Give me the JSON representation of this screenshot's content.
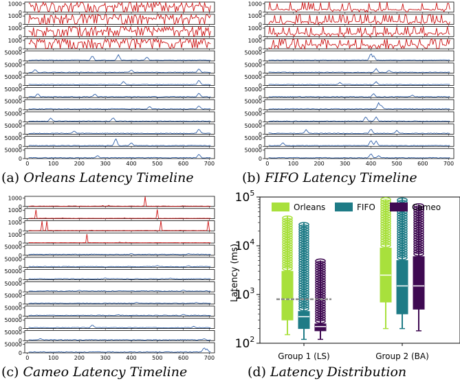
{
  "colors": {
    "ls_series": "#cc1111",
    "ba_series": "#2f5fa8",
    "orleans": "#a8e03c",
    "fifo": "#1e7b86",
    "cameo": "#3f0a52",
    "median_line": "#888888"
  },
  "captions": {
    "a": {
      "label": "(a) ",
      "text": "Orleans Latency Timeline"
    },
    "b": {
      "label": "(b) ",
      "text": "FIFO Latency Timeline"
    },
    "c": {
      "label": "(c) ",
      "text": "Cameo Latency Timeline"
    },
    "d": {
      "label": "(d) ",
      "text": "Latency Distribution"
    }
  },
  "chart_data": [
    {
      "type": "line",
      "panel": "a",
      "x_ticks": [
        0,
        100,
        200,
        300,
        400,
        500,
        600,
        700
      ],
      "xlim": [
        -10,
        720
      ],
      "ls_rows": [
        {
          "ylim": [
            0,
            1200
          ],
          "yticks": [
            0,
            1000
          ],
          "seed": 11,
          "base": 700,
          "amp": 500,
          "spike_prob": 0.35
        },
        {
          "ylim": [
            0,
            1200
          ],
          "yticks": [
            0,
            1000
          ],
          "seed": 12,
          "base": 700,
          "amp": 500,
          "spike_prob": 0.35
        },
        {
          "ylim": [
            0,
            1200
          ],
          "yticks": [
            0,
            1000
          ],
          "seed": 13,
          "base": 700,
          "amp": 500,
          "spike_prob": 0.35
        },
        {
          "ylim": [
            0,
            1200
          ],
          "yticks": [
            0,
            1000
          ],
          "seed": 14,
          "base": 700,
          "amp": 500,
          "spike_prob": 0.35
        }
      ],
      "ba_rows": [
        {
          "ylim": [
            0,
            60000
          ],
          "yticks": [
            0,
            50000
          ],
          "seed": 21,
          "spikes": [
            [
              250,
              30000
            ],
            [
              350,
              35000
            ],
            [
              460,
              22000
            ]
          ]
        },
        {
          "ylim": [
            0,
            60000
          ],
          "yticks": [
            0,
            50000
          ],
          "seed": 22,
          "spikes": [
            [
              30,
              20000
            ],
            [
              400,
              18000
            ],
            [
              660,
              25000
            ]
          ]
        },
        {
          "ylim": [
            0,
            60000
          ],
          "yticks": [
            0,
            50000
          ],
          "seed": 23,
          "spikes": [
            [
              370,
              22000
            ],
            [
              660,
              30000
            ]
          ]
        },
        {
          "ylim": [
            0,
            60000
          ],
          "yticks": [
            0,
            50000
          ],
          "seed": 24,
          "spikes": [
            [
              40,
              22000
            ],
            [
              260,
              20000
            ],
            [
              660,
              25000
            ]
          ]
        },
        {
          "ylim": [
            0,
            60000
          ],
          "yticks": [
            0,
            50000
          ],
          "seed": 25,
          "spikes": [
            [
              470,
              18000
            ],
            [
              660,
              22000
            ]
          ]
        },
        {
          "ylim": [
            0,
            60000
          ],
          "yticks": [
            0,
            50000
          ],
          "seed": 26,
          "spikes": [
            [
              90,
              22000
            ],
            [
              330,
              24000
            ]
          ]
        },
        {
          "ylim": [
            0,
            60000
          ],
          "yticks": [
            0,
            50000
          ],
          "seed": 27,
          "spikes": [
            [
              180,
              18000
            ],
            [
              660,
              30000
            ]
          ]
        },
        {
          "ylim": [
            0,
            60000
          ],
          "yticks": [
            0,
            50000
          ],
          "seed": 28,
          "spikes": [
            [
              340,
              45000
            ],
            [
              400,
              20000
            ]
          ]
        },
        {
          "ylim": [
            0,
            60000
          ],
          "yticks": [
            0,
            50000
          ],
          "seed": 29,
          "spikes": [
            [
              270,
              16000
            ],
            [
              660,
              24000
            ]
          ]
        }
      ]
    },
    {
      "type": "line",
      "panel": "b",
      "x_ticks": [
        0,
        100,
        200,
        300,
        400,
        500,
        600,
        700
      ],
      "xlim": [
        -10,
        720
      ],
      "ls_rows": [
        {
          "ylim": [
            0,
            1200
          ],
          "yticks": [
            0,
            1000
          ],
          "seed": 31,
          "base": 300,
          "amp": 250,
          "spike_prob": 0.15
        },
        {
          "ylim": [
            0,
            1200
          ],
          "yticks": [
            0,
            1000
          ],
          "seed": 32,
          "base": 300,
          "amp": 300,
          "spike_prob": 0.2
        },
        {
          "ylim": [
            0,
            1200
          ],
          "yticks": [
            0,
            1000
          ],
          "seed": 33,
          "base": 350,
          "amp": 350,
          "spike_prob": 0.25
        },
        {
          "ylim": [
            0,
            1200
          ],
          "yticks": [
            0,
            1000
          ],
          "seed": 34,
          "base": 450,
          "amp": 400,
          "spike_prob": 0.3
        }
      ],
      "ba_rows": [
        {
          "ylim": [
            0,
            60000
          ],
          "yticks": [
            0,
            50000
          ],
          "seed": 41,
          "spikes": [
            [
              400,
              45000
            ],
            [
              410,
              30000
            ]
          ]
        },
        {
          "ylim": [
            0,
            60000
          ],
          "yticks": [
            0,
            50000
          ],
          "seed": 42,
          "spikes": [
            [
              420,
              25000
            ],
            [
              470,
              15000
            ]
          ]
        },
        {
          "ylim": [
            0,
            60000
          ],
          "yticks": [
            0,
            50000
          ],
          "seed": 43,
          "spikes": [
            [
              280,
              15000
            ],
            [
              420,
              20000
            ]
          ]
        },
        {
          "ylim": [
            0,
            60000
          ],
          "yticks": [
            0,
            50000
          ],
          "seed": 44,
          "spikes": [
            [
              410,
              22000
            ],
            [
              560,
              12000
            ]
          ]
        },
        {
          "ylim": [
            0,
            60000
          ],
          "yticks": [
            0,
            50000
          ],
          "seed": 45,
          "spikes": [
            [
              430,
              40000
            ],
            [
              440,
              25000
            ]
          ]
        },
        {
          "ylim": [
            0,
            60000
          ],
          "yticks": [
            0,
            50000
          ],
          "seed": 46,
          "spikes": [
            [
              380,
              30000
            ],
            [
              420,
              28000
            ]
          ]
        },
        {
          "ylim": [
            0,
            60000
          ],
          "yticks": [
            0,
            50000
          ],
          "seed": 47,
          "spikes": [
            [
              150,
              25000
            ],
            [
              400,
              30000
            ],
            [
              500,
              20000
            ]
          ]
        },
        {
          "ylim": [
            0,
            60000
          ],
          "yticks": [
            0,
            50000
          ],
          "seed": 48,
          "spikes": [
            [
              60,
              20000
            ],
            [
              400,
              35000
            ],
            [
              420,
              30000
            ]
          ]
        },
        {
          "ylim": [
            0,
            60000
          ],
          "yticks": [
            0,
            50000
          ],
          "seed": 49,
          "spikes": [
            [
              400,
              28000
            ],
            [
              430,
              15000
            ]
          ]
        }
      ]
    },
    {
      "type": "line",
      "panel": "c",
      "x_ticks": [
        0,
        100,
        200,
        300,
        400,
        500,
        600,
        700
      ],
      "xlim": [
        -10,
        720
      ],
      "ls_rows": [
        {
          "ylim": [
            0,
            1200
          ],
          "yticks": [
            0,
            1000
          ],
          "seed": 51,
          "base": 40,
          "amp": 40,
          "spike_prob": 0.03
        },
        {
          "ylim": [
            0,
            1200
          ],
          "yticks": [
            0,
            1000
          ],
          "seed": 52,
          "base": 40,
          "amp": 40,
          "spike_prob": 0.03
        },
        {
          "ylim": [
            0,
            1200
          ],
          "yticks": [
            0,
            1000
          ],
          "seed": 53,
          "base": 40,
          "amp": 40,
          "spike_prob": 0.03
        },
        {
          "ylim": [
            0,
            1200
          ],
          "yticks": [
            0,
            1000
          ],
          "seed": 54,
          "base": 40,
          "amp": 40,
          "spike_prob": 0.03
        }
      ],
      "ba_rows": [
        {
          "ylim": [
            0,
            60000
          ],
          "yticks": [
            0,
            50000
          ],
          "seed": 61,
          "spikes": [
            [
              400,
              8000
            ],
            [
              620,
              7000
            ]
          ]
        },
        {
          "ylim": [
            0,
            60000
          ],
          "yticks": [
            0,
            50000
          ],
          "seed": 62,
          "spikes": [
            [
              500,
              9000
            ],
            [
              620,
              8000
            ]
          ]
        },
        {
          "ylim": [
            0,
            60000
          ],
          "yticks": [
            0,
            50000
          ],
          "seed": 63,
          "spikes": [
            [
              300,
              8000
            ],
            [
              550,
              7000
            ]
          ]
        },
        {
          "ylim": [
            0,
            60000
          ],
          "yticks": [
            0,
            50000
          ],
          "seed": 64,
          "spikes": [
            [
              200,
              7000
            ],
            [
              600,
              8000
            ]
          ]
        },
        {
          "ylim": [
            0,
            60000
          ],
          "yticks": [
            0,
            50000
          ],
          "seed": 65,
          "spikes": [
            [
              420,
              8000
            ],
            [
              650,
              7000
            ]
          ]
        },
        {
          "ylim": [
            0,
            60000
          ],
          "yticks": [
            0,
            50000
          ],
          "seed": 66,
          "spikes": [
            [
              350,
              7000
            ],
            [
              600,
              9000
            ]
          ]
        },
        {
          "ylim": [
            0,
            60000
          ],
          "yticks": [
            0,
            50000
          ],
          "seed": 67,
          "spikes": [
            [
              250,
              20000
            ],
            [
              640,
              10000
            ]
          ]
        },
        {
          "ylim": [
            0,
            60000
          ],
          "yticks": [
            0,
            50000
          ],
          "seed": 68,
          "spikes": [
            [
              50,
              10000
            ],
            [
              680,
              9000
            ]
          ]
        },
        {
          "ylim": [
            0,
            60000
          ],
          "yticks": [
            0,
            50000
          ],
          "seed": 69,
          "spikes": [
            [
              680,
              30000
            ],
            [
              690,
              22000
            ]
          ]
        }
      ]
    },
    {
      "type": "box",
      "panel": "d",
      "yscale": "log",
      "ylim": [
        100,
        100000
      ],
      "ytick_values": [
        100,
        1000,
        10000,
        100000
      ],
      "ytick_labels": [
        {
          "b": "10",
          "e": "2"
        },
        {
          "b": "10",
          "e": "3"
        },
        {
          "b": "10",
          "e": "4"
        },
        {
          "b": "10",
          "e": "5"
        }
      ],
      "ylabel": "Latency (ms)",
      "categories": [
        "Group 1 (LS)",
        "Group 2 (BA)"
      ],
      "legend": [
        "Orleans",
        "FIFO",
        "Cameo"
      ],
      "reference_line": 800,
      "series": [
        {
          "name": "Orleans",
          "boxes": [
            {
              "whislo": 150,
              "q1": 300,
              "med": 800,
              "q3": 3000,
              "whishi": 40000
            },
            {
              "whislo": 200,
              "q1": 700,
              "med": 2500,
              "q3": 9000,
              "whishi": 90000
            }
          ]
        },
        {
          "name": "FIFO",
          "boxes": [
            {
              "whislo": 120,
              "q1": 200,
              "med": 350,
              "q3": 450,
              "whishi": 30000
            },
            {
              "whislo": 200,
              "q1": 400,
              "med": 1500,
              "q3": 5000,
              "whishi": 95000
            }
          ]
        },
        {
          "name": "Cameo",
          "boxes": [
            {
              "whislo": 120,
              "q1": 180,
              "med": 220,
              "q3": 250,
              "whishi": 5000
            },
            {
              "whislo": 180,
              "q1": 500,
              "med": 1500,
              "q3": 6000,
              "whishi": 70000
            }
          ]
        }
      ]
    }
  ]
}
